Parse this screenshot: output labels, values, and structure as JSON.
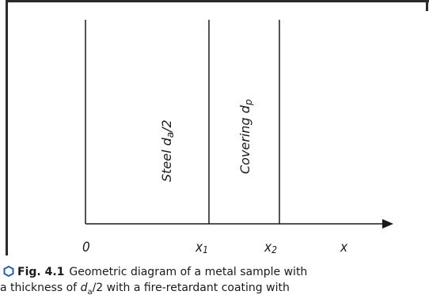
{
  "diagram": {
    "origin_label": "0",
    "x1_label": "x",
    "x1_sub": "1",
    "x2_label": "x",
    "x2_sub": "2",
    "axis_label": "x",
    "steel_label": "Steel d",
    "steel_sub": "a",
    "steel_suffix": "/2",
    "covering_label": "Covering d",
    "covering_sub": "p"
  },
  "caption": {
    "fig_number": "Fig. 4.1",
    "text_line1": "Geometric diagram of a metal sample with",
    "text_line2_prefix": "a thickness of ",
    "text_line2_var": "d",
    "text_line2_sub": "a",
    "text_line2_suffix": "/2 with a fire-retardant coating with"
  },
  "colors": {
    "line": "#1a1a1a",
    "icon": "#2b5fa6"
  }
}
